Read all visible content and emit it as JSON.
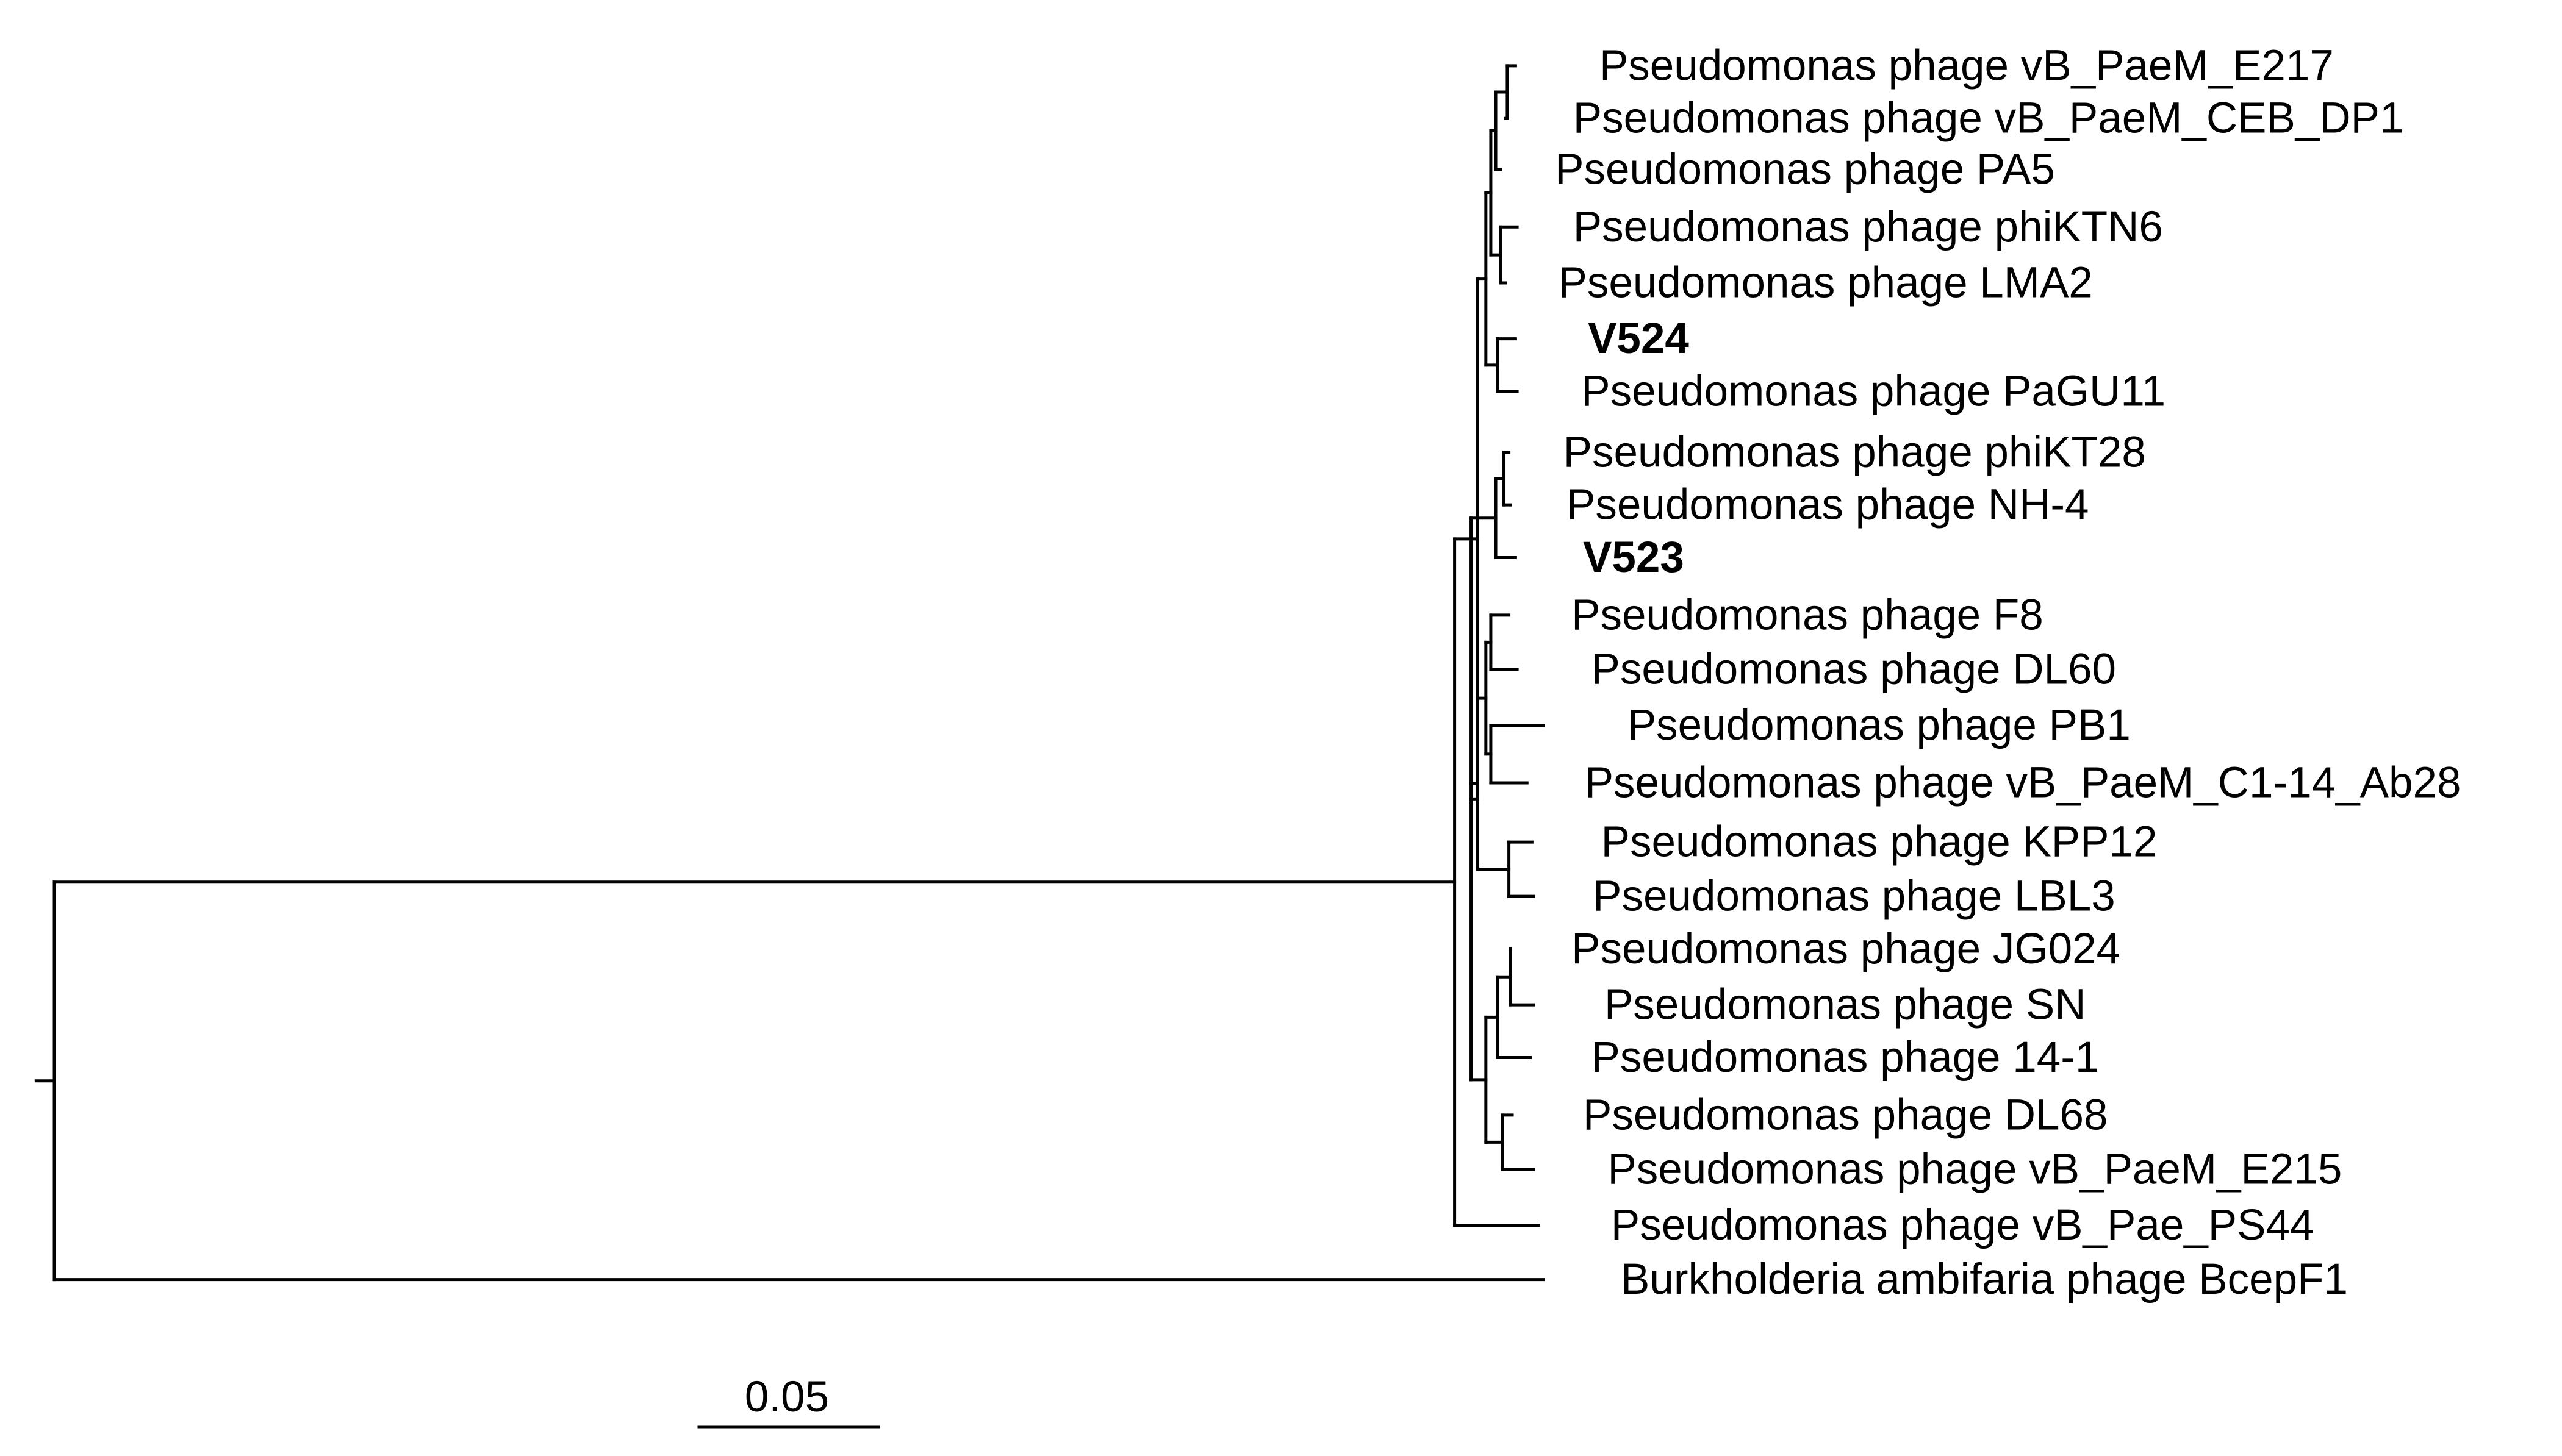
{
  "tree": {
    "leaves": [
      {
        "id": "E217",
        "label": "Pseudomonas phage vB_PaeM_E217",
        "bold": false
      },
      {
        "id": "CEB",
        "label": "Pseudomonas phage vB_PaeM_CEB_DP1",
        "bold": false
      },
      {
        "id": "PA5",
        "label": "Pseudomonas phage PA5",
        "bold": false
      },
      {
        "id": "KTN6",
        "label": "Pseudomonas phage phiKTN6",
        "bold": false
      },
      {
        "id": "LMA2",
        "label": "Pseudomonas phage LMA2",
        "bold": false
      },
      {
        "id": "V524",
        "label": "V524",
        "bold": true
      },
      {
        "id": "PaGU11",
        "label": "Pseudomonas phage PaGU11",
        "bold": false
      },
      {
        "id": "KT28",
        "label": "Pseudomonas phage phiKT28",
        "bold": false
      },
      {
        "id": "NH4",
        "label": "Pseudomonas phage NH-4",
        "bold": false
      },
      {
        "id": "V523",
        "label": "V523",
        "bold": true
      },
      {
        "id": "F8",
        "label": "Pseudomonas phage F8",
        "bold": false
      },
      {
        "id": "DL60",
        "label": "Pseudomonas phage DL60",
        "bold": false
      },
      {
        "id": "PB1",
        "label": "Pseudomonas phage PB1",
        "bold": false
      },
      {
        "id": "C1",
        "label": "Pseudomonas phage vB_PaeM_C1-14_Ab28",
        "bold": false
      },
      {
        "id": "KPP12",
        "label": "Pseudomonas phage KPP12",
        "bold": false
      },
      {
        "id": "LBL3",
        "label": "Pseudomonas phage LBL3",
        "bold": false
      },
      {
        "id": "JG024",
        "label": "Pseudomonas phage JG024",
        "bold": false
      },
      {
        "id": "SN",
        "label": "Pseudomonas phage SN",
        "bold": false
      },
      {
        "id": "141",
        "label": "Pseudomonas phage 14-1",
        "bold": false
      },
      {
        "id": "DL68",
        "label": "Pseudomonas phage DL68",
        "bold": false
      },
      {
        "id": "E215",
        "label": "Pseudomonas phage vB_PaeM_E215",
        "bold": false
      },
      {
        "id": "PS44",
        "label": "Pseudomonas phage vB_Pae_PS44",
        "bold": false
      },
      {
        "id": "BcepF1",
        "label": "Burkholderia ambifaria phage BcepF1",
        "bold": false
      }
    ],
    "scale_bar": {
      "label": "0.05",
      "length": 0.05
    }
  }
}
